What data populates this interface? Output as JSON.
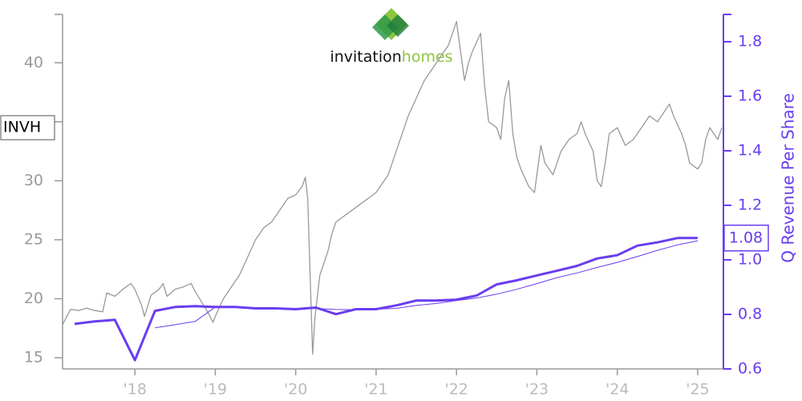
{
  "chart_data": {
    "type": "line",
    "logo_text": [
      "invitation",
      "homes"
    ],
    "y2_label": "Q Revenue Per Share",
    "xlim": [
      2017.1,
      2025.32
    ],
    "xticks": [
      {
        "value": 2018,
        "label": "'18"
      },
      {
        "value": 2019,
        "label": "'19"
      },
      {
        "value": 2020,
        "label": "'20"
      },
      {
        "value": 2021,
        "label": "'21"
      },
      {
        "value": 2022,
        "label": "'22"
      },
      {
        "value": 2023,
        "label": "'23"
      },
      {
        "value": 2024,
        "label": "'24"
      },
      {
        "value": 2025,
        "label": "'25"
      }
    ],
    "ylim": [
      14.05,
      44.1
    ],
    "yticks": [
      15,
      20,
      25,
      30,
      35,
      40
    ],
    "y2lim": [
      0.6,
      1.9
    ],
    "y2ticks": [
      {
        "value": 0.6,
        "label": "0.6"
      },
      {
        "value": 0.8,
        "label": "0.8"
      },
      {
        "value": 1.0,
        "label": "1.0"
      },
      {
        "value": 1.2,
        "label": "1.2"
      },
      {
        "value": 1.4,
        "label": "1.4"
      },
      {
        "value": 1.6,
        "label": "1.6"
      },
      {
        "value": 1.8,
        "label": "1.8"
      }
    ],
    "axis_color": "#999999",
    "y2_color": "#6a3cf0",
    "series": [
      {
        "name": "INVH",
        "color": "#999999",
        "width": 1.3,
        "label_box": true,
        "x": [
          2017.1,
          2017.2,
          2017.3,
          2017.4,
          2017.5,
          2017.6,
          2017.65,
          2017.75,
          2017.85,
          2017.95,
          2018.0,
          2018.08,
          2018.12,
          2018.2,
          2018.3,
          2018.35,
          2018.4,
          2018.5,
          2018.6,
          2018.7,
          2018.75,
          2018.85,
          2018.92,
          2018.97,
          2019.0,
          2019.1,
          2019.2,
          2019.3,
          2019.4,
          2019.5,
          2019.6,
          2019.7,
          2019.8,
          2019.9,
          2020.0,
          2020.08,
          2020.12,
          2020.15,
          2020.18,
          2020.21,
          2020.24,
          2020.3,
          2020.4,
          2020.45,
          2020.5,
          2020.6,
          2020.7,
          2020.8,
          2020.9,
          2021.0,
          2021.1,
          2021.15,
          2021.2,
          2021.3,
          2021.4,
          2021.5,
          2021.6,
          2021.7,
          2021.8,
          2021.9,
          2022.0,
          2022.05,
          2022.1,
          2022.15,
          2022.2,
          2022.3,
          2022.35,
          2022.4,
          2022.5,
          2022.55,
          2022.6,
          2022.65,
          2022.7,
          2022.75,
          2022.8,
          2022.9,
          2022.97,
          2023.05,
          2023.1,
          2023.2,
          2023.3,
          2023.4,
          2023.5,
          2023.55,
          2023.6,
          2023.7,
          2023.75,
          2023.8,
          2023.85,
          2023.9,
          2024.0,
          2024.1,
          2024.2,
          2024.3,
          2024.4,
          2024.5,
          2024.6,
          2024.65,
          2024.7,
          2024.8,
          2024.85,
          2024.9,
          2025.0,
          2025.05,
          2025.1,
          2025.15,
          2025.2,
          2025.25,
          2025.3
        ],
        "values": [
          17.8,
          19.1,
          19.0,
          19.2,
          19.0,
          18.9,
          20.5,
          20.2,
          20.8,
          21.3,
          20.8,
          19.5,
          18.5,
          20.3,
          20.8,
          21.3,
          20.2,
          20.8,
          21.0,
          21.3,
          20.6,
          19.5,
          18.7,
          18.0,
          18.5,
          20.0,
          21.0,
          22.0,
          23.5,
          25.0,
          26.0,
          26.5,
          27.5,
          28.5,
          28.8,
          29.5,
          30.3,
          28.5,
          22.0,
          15.3,
          18.5,
          22.0,
          24.0,
          25.5,
          26.5,
          27.0,
          27.5,
          28.0,
          28.5,
          29.0,
          30.0,
          30.5,
          31.5,
          33.5,
          35.5,
          37.0,
          38.5,
          39.5,
          40.5,
          41.5,
          43.5,
          41.0,
          38.5,
          40.0,
          41.0,
          42.5,
          38.0,
          35.0,
          34.5,
          33.5,
          37.0,
          38.5,
          34.0,
          32.0,
          31.0,
          29.5,
          29.0,
          33.0,
          31.5,
          30.5,
          32.5,
          33.5,
          34.0,
          35.0,
          34.0,
          32.5,
          30.0,
          29.5,
          31.5,
          34.0,
          34.5,
          33.0,
          33.5,
          34.5,
          35.5,
          35.0,
          36.0,
          36.5,
          35.5,
          34.0,
          33.0,
          31.5,
          31.0,
          31.5,
          33.5,
          34.5,
          34.0,
          33.5,
          34.5
        ]
      },
      {
        "color": "#6a3cf0",
        "width": 3,
        "axis": "y2",
        "label_box": true,
        "x": [
          2017.25,
          2017.5,
          2017.75,
          2018.0,
          2018.25,
          2018.5,
          2018.75,
          2019.0,
          2019.25,
          2019.5,
          2019.75,
          2020.0,
          2020.25,
          2020.5,
          2020.75,
          2021.0,
          2021.25,
          2021.5,
          2021.75,
          2022.0,
          2022.25,
          2022.5,
          2022.75,
          2023.0,
          2023.25,
          2023.5,
          2023.75,
          2024.0,
          2024.25,
          2024.5,
          2024.75,
          2025.0
        ],
        "values": [
          0.765,
          0.774,
          0.78,
          0.632,
          0.813,
          0.827,
          0.83,
          0.827,
          0.827,
          0.822,
          0.822,
          0.819,
          0.825,
          0.801,
          0.819,
          0.819,
          0.833,
          0.851,
          0.851,
          0.854,
          0.869,
          0.91,
          0.925,
          0.943,
          0.96,
          0.978,
          1.005,
          1.017,
          1.052,
          1.064,
          1.08,
          1.08
        ]
      },
      {
        "color": "#6a3cf0",
        "width": 1,
        "axis": "y2",
        "x": [
          2017.25,
          2017.5,
          2017.75,
          2018.0,
          2018.25,
          2018.5,
          2018.75,
          2019.0,
          2019.25,
          2019.5,
          2019.75,
          2020.0,
          2020.25,
          2020.5,
          2020.75,
          2021.0,
          2021.25,
          2021.5,
          2021.75,
          2022.0,
          2022.25,
          2022.5,
          2022.75,
          2023.0,
          2023.25,
          2023.5,
          2023.75,
          2024.0,
          2024.25,
          2024.5,
          2024.75,
          2025.0
        ],
        "values": [
          null,
          null,
          null,
          null,
          0.751,
          0.762,
          0.774,
          0.827,
          0.826,
          0.823,
          0.822,
          0.821,
          0.822,
          0.818,
          0.817,
          0.819,
          0.822,
          0.833,
          0.84,
          0.851,
          0.86,
          0.874,
          0.892,
          0.913,
          0.935,
          0.952,
          0.972,
          0.991,
          1.012,
          1.035,
          1.055,
          1.07
        ]
      }
    ]
  }
}
